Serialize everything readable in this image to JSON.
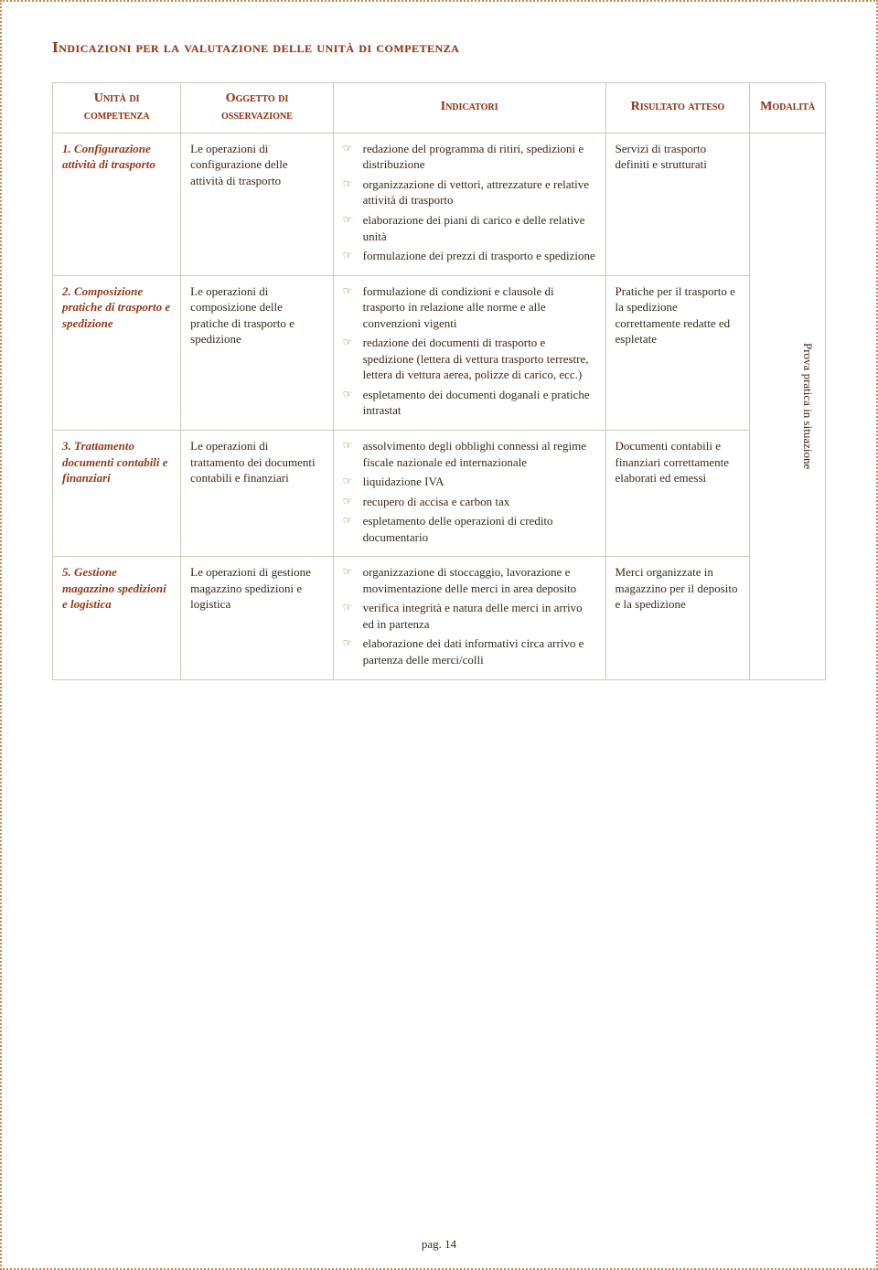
{
  "title": "Indicazioni per la valutazione delle unità di competenza",
  "headers": {
    "unit": "Unità di competenza",
    "object": "Oggetto di osservazione",
    "indicators": "Indicatori",
    "result": "Risultato atteso",
    "modality": "Modalità"
  },
  "rows": [
    {
      "unit": "1. Configurazione attività di trasporto",
      "object": "Le operazioni di configurazione delle attività di trasporto",
      "indicators": [
        "redazione del programma di ritiri, spedizioni e distribuzione",
        "organizzazione di vettori, attrezzature e relative attività di trasporto",
        "elaborazione dei piani di carico e delle relative unità",
        "formulazione dei prezzi di trasporto e spedizione"
      ],
      "result": "Servizi di trasporto definiti e strutturati"
    },
    {
      "unit": "2. Composizione pratiche di trasporto e spedizione",
      "object": "Le operazioni di composizione delle pratiche di trasporto e spedizione",
      "indicators": [
        "formulazione di condizioni e clausole di trasporto in relazione alle norme e alle convenzioni vigenti",
        "redazione dei documenti di trasporto e spedizione (lettera di vettura trasporto terrestre, lettera di vettura aerea, polizze di carico, ecc.)",
        "espletamento dei documenti doganali e pratiche intrastat"
      ],
      "result": "Pratiche per il trasporto e la spedizione correttamente redatte ed espletate"
    },
    {
      "unit": "3. Trattamento documenti contabili e finanziari",
      "object": "Le operazioni di trattamento dei documenti contabili e finanziari",
      "indicators": [
        "assolvimento degli obblighi connessi al regime fiscale nazionale ed internazionale",
        "liquidazione IVA",
        "recupero di accisa e carbon tax",
        "espletamento delle operazioni di credito documentario"
      ],
      "result": "Documenti contabili e finanziari correttamente elaborati ed emessi"
    },
    {
      "unit": "5. Gestione magazzino spedizioni e logistica",
      "object": "Le operazioni di gestione magazzino spedizioni e logistica",
      "indicators": [
        "organizzazione di stoccaggio, lavorazione e movimentazione delle merci in area deposito",
        "verifica integrità e natura delle merci in arrivo ed in partenza",
        "elaborazione dei dati informativi circa arrivo e partenza delle merci/colli"
      ],
      "result": "Merci organizzate in magazzino per il deposito e la spedizione"
    }
  ],
  "modality_text": "Prova pratica in situazione",
  "page_number": "pag. 14",
  "colors": {
    "heading": "#913a1c",
    "border": "#d0c8b8",
    "dotted_border": "#c08a50",
    "text": "#3a2a1a",
    "icon": "#8a6a3a"
  }
}
